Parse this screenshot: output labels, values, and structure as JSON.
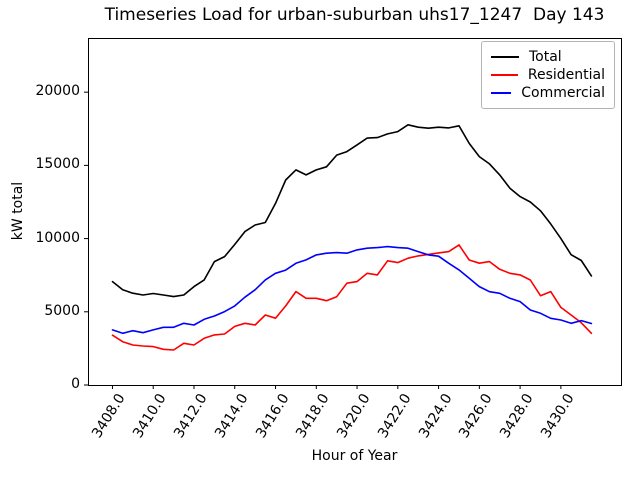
{
  "chart_data": {
    "type": "line",
    "title": "Timeseries Load for urban-suburban uhs17_1247  Day 143",
    "xlabel": "Hour of Year",
    "ylabel": "kW total",
    "xlim": [
      3406.8,
      3432.95
    ],
    "ylim": [
      0,
      23700
    ],
    "grid": false,
    "legend_position": "upper right",
    "x_ticks": [
      3408,
      3410,
      3412,
      3414,
      3416,
      3418,
      3420,
      3422,
      3424,
      3426,
      3428,
      3430
    ],
    "x_tick_labels": [
      "3408.0",
      "3410.0",
      "3412.0",
      "3414.0",
      "3416.0",
      "3418.0",
      "3420.0",
      "3422.0",
      "3424.0",
      "3426.0",
      "3428.0",
      "3430.0"
    ],
    "y_ticks": [
      0,
      5000,
      10000,
      15000,
      20000
    ],
    "y_tick_labels": [
      "0",
      "5000",
      "10000",
      "15000",
      "20000"
    ],
    "x": [
      3408,
      3408.5,
      3409,
      3409.5,
      3410,
      3410.5,
      3411,
      3411.5,
      3412,
      3412.5,
      3413,
      3413.5,
      3414,
      3414.5,
      3415,
      3415.5,
      3416,
      3416.5,
      3417,
      3417.5,
      3418,
      3418.5,
      3419,
      3419.5,
      3420,
      3420.5,
      3421,
      3421.5,
      3422,
      3422.5,
      3423,
      3423.5,
      3424,
      3424.5,
      3425,
      3425.5,
      3426,
      3426.5,
      3427,
      3427.5,
      3428,
      3428.5,
      3429,
      3429.5,
      3430,
      3430.5,
      3431,
      3431.5
    ],
    "series": [
      {
        "name": "Total",
        "color": "#000000",
        "values": [
          7060,
          6500,
          6270,
          6150,
          6250,
          6150,
          6040,
          6150,
          6720,
          7175,
          8430,
          8770,
          9600,
          10480,
          10930,
          11100,
          12400,
          14000,
          14690,
          14350,
          14690,
          14900,
          15700,
          15940,
          16400,
          16860,
          16900,
          17150,
          17310,
          17770,
          17610,
          17540,
          17610,
          17560,
          17700,
          16500,
          15600,
          15100,
          14350,
          13440,
          12870,
          12500,
          11900,
          11000,
          10000,
          8900,
          8500,
          7450
        ]
      },
      {
        "name": "Residential",
        "color": "#ff0000",
        "values": [
          3400,
          2960,
          2730,
          2665,
          2620,
          2440,
          2390,
          2850,
          2730,
          3190,
          3420,
          3480,
          4000,
          4215,
          4100,
          4780,
          4560,
          5400,
          6380,
          5920,
          5920,
          5760,
          6030,
          6950,
          7060,
          7630,
          7520,
          8480,
          8360,
          8660,
          8820,
          8920,
          9020,
          9110,
          9570,
          8540,
          8320,
          8430,
          7900,
          7630,
          7520,
          7170,
          6100,
          6380,
          5300,
          4780,
          4250,
          3530
        ]
      },
      {
        "name": "Commercial",
        "color": "#0000ff",
        "values": [
          3760,
          3530,
          3710,
          3575,
          3760,
          3940,
          3940,
          4215,
          4100,
          4490,
          4715,
          5010,
          5400,
          6000,
          6500,
          7175,
          7630,
          7850,
          8315,
          8545,
          8885,
          9000,
          9045,
          9000,
          9225,
          9340,
          9385,
          9455,
          9385,
          9340,
          9110,
          8885,
          8800,
          8315,
          7860,
          7290,
          6720,
          6375,
          6265,
          5925,
          5695,
          5125,
          4900,
          4555,
          4440,
          4215,
          4400,
          4200
        ]
      }
    ]
  }
}
